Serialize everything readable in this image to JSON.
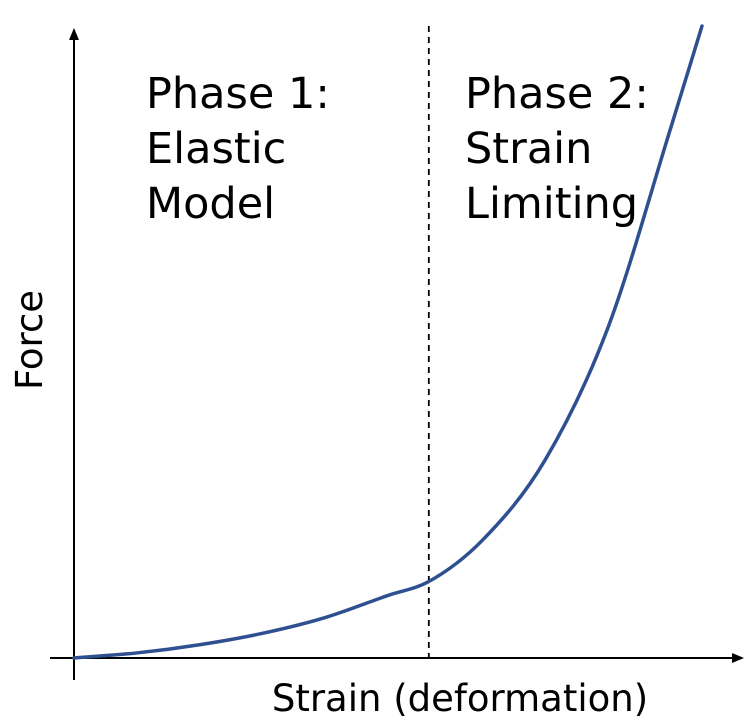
{
  "chart_data": {
    "type": "line",
    "title": "",
    "xlabel": "Strain (deformation)",
    "ylabel": "Force",
    "xlim": [
      0,
      1
    ],
    "ylim": [
      0,
      1
    ],
    "grid": false,
    "ticks": false,
    "threshold_x": 0.565,
    "threshold_style": "dashed",
    "series": [
      {
        "color": "#2e5090",
        "x": [
          0,
          0.1,
          0.2,
          0.3,
          0.4,
          0.5,
          0.565,
          0.65,
          0.75,
          0.85,
          0.95,
          1.0
        ],
        "y": [
          0,
          0.008,
          0.021,
          0.039,
          0.064,
          0.099,
          0.121,
          0.186,
          0.313,
          0.522,
          0.838,
          1.0
        ]
      }
    ],
    "regions": [
      {
        "lines": [
          "Phase 1:",
          "Elastic",
          "Model"
        ]
      },
      {
        "lines": [
          "Phase 2:",
          "Strain",
          "Limiting"
        ]
      }
    ]
  }
}
